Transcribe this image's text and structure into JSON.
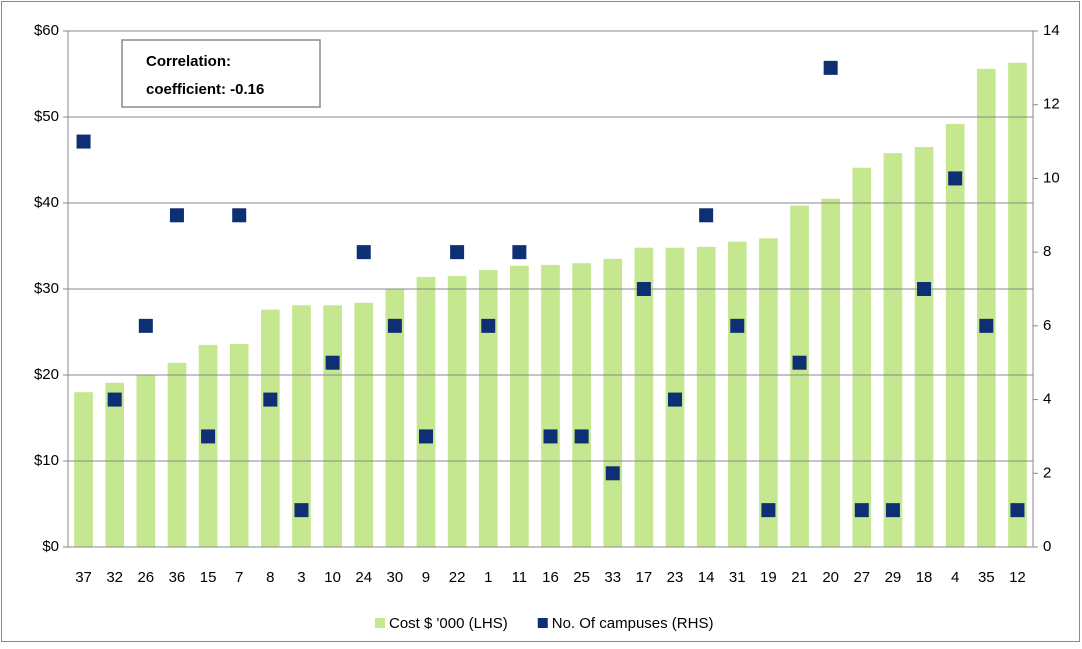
{
  "chart_data": {
    "type": "combo",
    "annotation": [
      "Correlation:",
      "coefficient: -0.16"
    ],
    "categories": [
      "37",
      "32",
      "26",
      "36",
      "15",
      "7",
      "8",
      "3",
      "10",
      "24",
      "30",
      "9",
      "22",
      "1",
      "11",
      "16",
      "25",
      "33",
      "17",
      "23",
      "14",
      "31",
      "19",
      "21",
      "20",
      "27",
      "29",
      "18",
      "4",
      "35",
      "12"
    ],
    "series": [
      {
        "name": "Cost $ '000 (LHS)",
        "type": "bar",
        "color": "#c4e78f",
        "values": [
          18.0,
          19.1,
          20.0,
          21.4,
          23.5,
          23.6,
          27.6,
          28.1,
          28.1,
          28.4,
          30.0,
          31.4,
          31.5,
          32.2,
          32.7,
          32.8,
          33.0,
          33.5,
          34.8,
          34.8,
          34.9,
          35.5,
          35.9,
          39.7,
          40.5,
          44.1,
          45.8,
          46.5,
          49.2,
          55.6,
          56.3
        ]
      },
      {
        "name": "No. Of campuses (RHS)",
        "type": "scatter",
        "axis": "y2",
        "color": "#0e2f73",
        "values": [
          11,
          4,
          6,
          9,
          3,
          9,
          4,
          1,
          5,
          8,
          6,
          3,
          8,
          6,
          8,
          3,
          3,
          2,
          7,
          4,
          9,
          6,
          1,
          5,
          13,
          1,
          1,
          7,
          10,
          6,
          1
        ]
      }
    ],
    "ylim": [
      0,
      60
    ],
    "yticks": [
      {
        "value": 0,
        "label": "$0"
      },
      {
        "value": 10,
        "label": "$10"
      },
      {
        "value": 20,
        "label": "$20"
      },
      {
        "value": 30,
        "label": "$30"
      },
      {
        "value": 40,
        "label": "$40"
      },
      {
        "value": 50,
        "label": "$50"
      },
      {
        "value": 60,
        "label": "$60"
      }
    ],
    "y2lim": [
      0,
      14
    ],
    "y2ticks": [
      0,
      2,
      4,
      6,
      8,
      10,
      12,
      14
    ],
    "grid": true
  }
}
